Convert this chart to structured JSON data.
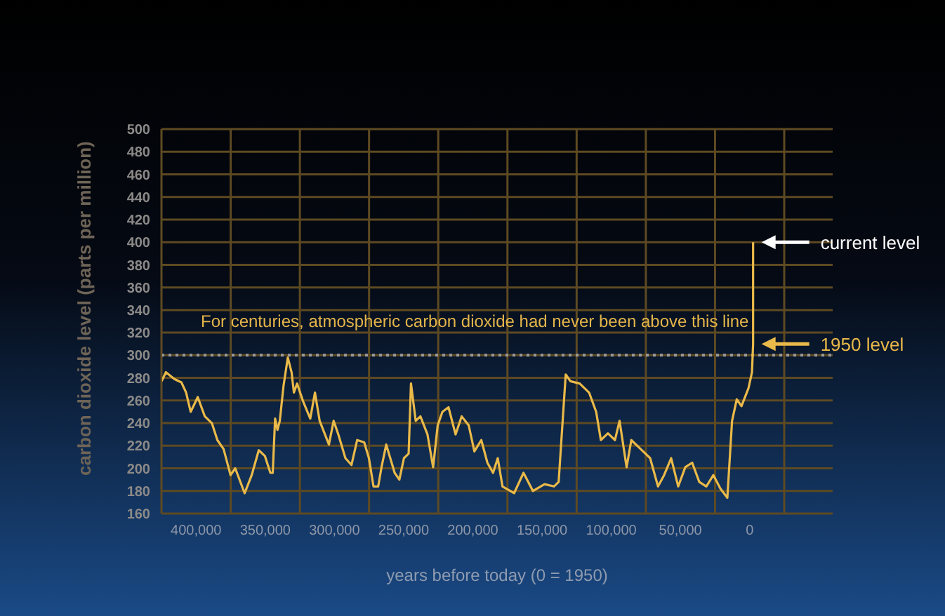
{
  "chart_data": {
    "type": "line",
    "xlabel": "years before today (0 = 1950)",
    "ylabel": "carbon dioxide level (parts per million)",
    "x": [
      424900,
      421800,
      415700,
      410600,
      407200,
      403900,
      398800,
      393700,
      388600,
      384600,
      380100,
      375100,
      371700,
      364900,
      359800,
      354700,
      350300,
      346300,
      344600,
      342900,
      341200,
      339500,
      336800,
      333700,
      331000,
      329300,
      327000,
      322600,
      317500,
      314100,
      310700,
      304000,
      300600,
      297200,
      292100,
      287700,
      283600,
      278500,
      275100,
      271800,
      268400,
      266000,
      262600,
      256500,
      253100,
      249800,
      246400,
      244700,
      241300,
      237900,
      232800,
      228700,
      225400,
      222000,
      217600,
      212500,
      208100,
      203000,
      198900,
      193900,
      189500,
      185400,
      182000,
      178600,
      170200,
      163400,
      156600,
      148200,
      141400,
      138000,
      132900,
      129500,
      122800,
      116000,
      110900,
      107500,
      102400,
      97300,
      94000,
      88900,
      85500,
      78700,
      71900,
      66200,
      61800,
      56700,
      51600,
      46500,
      41500,
      36400,
      31300,
      26200,
      21100,
      16100,
      12700,
      9300,
      5900,
      800,
      -1700,
      -2500,
      -2500
    ],
    "series": [
      {
        "color": "#e9b949",
        "values": [
          277,
          285,
          279,
          276,
          267,
          250,
          263,
          246,
          240,
          225,
          217,
          194,
          200,
          178,
          194,
          216,
          211,
          196,
          196,
          244,
          234,
          242,
          273,
          298,
          285,
          267,
          275,
          259,
          244,
          267,
          242,
          221,
          242,
          230,
          209,
          203,
          225,
          223,
          209,
          184,
          184,
          201,
          221,
          196,
          190,
          209,
          213,
          275,
          242,
          246,
          230,
          201,
          238,
          250,
          254,
          230,
          246,
          238,
          215,
          225,
          205,
          196,
          209,
          184,
          178,
          196,
          180,
          186,
          184,
          188,
          283,
          277,
          275,
          267,
          250,
          225,
          231,
          225,
          242,
          201,
          225,
          217,
          209,
          184,
          194,
          209,
          184,
          201,
          205,
          188,
          184,
          194,
          182,
          174,
          242,
          261,
          255,
          271,
          285,
          310,
          400
        ]
      }
    ],
    "xlim": [
      425000,
      -60000
    ],
    "xticks": [
      {
        "value": 425000,
        "label": null
      },
      {
        "value": 400000,
        "label": "400,000"
      },
      {
        "value": 375000,
        "label": null
      },
      {
        "value": 350000,
        "label": "350,000"
      },
      {
        "value": 325000,
        "label": null
      },
      {
        "value": 300000,
        "label": "300,000"
      },
      {
        "value": 275000,
        "label": null
      },
      {
        "value": 250000,
        "label": "250,000"
      },
      {
        "value": 225000,
        "label": null
      },
      {
        "value": 200000,
        "label": "200,000"
      },
      {
        "value": 175000,
        "label": null
      },
      {
        "value": 150000,
        "label": "150,000"
      },
      {
        "value": 125000,
        "label": null
      },
      {
        "value": 100000,
        "label": "100,000"
      },
      {
        "value": 75000,
        "label": null
      },
      {
        "value": 50000,
        "label": "50,000"
      },
      {
        "value": 25000,
        "label": null
      },
      {
        "value": 0,
        "label": "0"
      },
      {
        "value": -25000,
        "label": null
      }
    ],
    "ylim": [
      160,
      500
    ],
    "yticks": [
      160,
      180,
      200,
      220,
      240,
      260,
      280,
      300,
      320,
      340,
      360,
      380,
      400,
      420,
      440,
      460,
      480,
      500
    ],
    "grid": true,
    "marker": "none",
    "line_style": "solid",
    "legend": false,
    "ref_lines": [
      {
        "axis": "y",
        "value": 300,
        "label": "For centuries, atmospheric carbon dioxide had never been above this line",
        "color": "#9a9a9a",
        "line_style": "dotted"
      }
    ],
    "annotations": [
      "current level",
      "1950 level"
    ]
  }
}
